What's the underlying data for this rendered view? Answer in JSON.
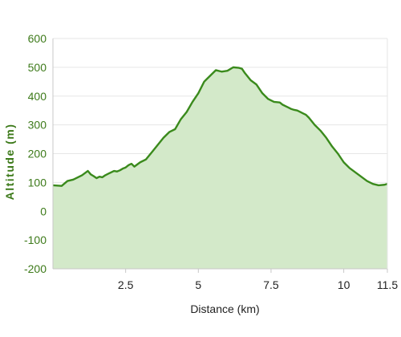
{
  "chart_data": {
    "type": "area",
    "xlabel": "Distance (km)",
    "ylabel": "Altitude (m)",
    "xlim": [
      0,
      11.5
    ],
    "ylim": [
      -200,
      600
    ],
    "x_ticks": [
      {
        "value": 2.5,
        "label": "2.5"
      },
      {
        "value": 5,
        "label": "5"
      },
      {
        "value": 7.5,
        "label": "7.5"
      },
      {
        "value": 10,
        "label": "10"
      },
      {
        "value": 11.5,
        "label": "11.5"
      }
    ],
    "y_ticks": [
      {
        "value": -200,
        "label": "-200"
      },
      {
        "value": -100,
        "label": "-100"
      },
      {
        "value": 0,
        "label": "0"
      },
      {
        "value": 100,
        "label": "100"
      },
      {
        "value": 200,
        "label": "200"
      },
      {
        "value": 300,
        "label": "300"
      },
      {
        "value": 400,
        "label": "400"
      },
      {
        "value": 500,
        "label": "500"
      },
      {
        "value": 600,
        "label": "600"
      }
    ],
    "grid": "horizontal",
    "line_color": "#3a8a1c",
    "fill_color": "#d3e9c9",
    "axis_label_color": "#3d7a1a",
    "series": [
      {
        "x": [
          0,
          0.3,
          0.5,
          0.7,
          1.0,
          1.2,
          1.3,
          1.4,
          1.5,
          1.6,
          1.7,
          1.8,
          1.9,
          2.0,
          2.1,
          2.2,
          2.3,
          2.4,
          2.5,
          2.6,
          2.7,
          2.8,
          3.0,
          3.2,
          3.4,
          3.6,
          3.8,
          4.0,
          4.2,
          4.4,
          4.6,
          4.8,
          5.0,
          5.2,
          5.4,
          5.6,
          5.8,
          6.0,
          6.2,
          6.4,
          6.5,
          6.6,
          6.8,
          7.0,
          7.2,
          7.4,
          7.6,
          7.8,
          7.9,
          8.0,
          8.1,
          8.2,
          8.3,
          8.4,
          8.5,
          8.6,
          8.7,
          8.8,
          9.0,
          9.2,
          9.4,
          9.6,
          9.8,
          10.0,
          10.2,
          10.4,
          10.6,
          10.8,
          11.0,
          11.2,
          11.4,
          11.5
        ],
        "y": [
          90,
          88,
          105,
          110,
          125,
          140,
          128,
          122,
          115,
          120,
          118,
          125,
          130,
          135,
          140,
          138,
          142,
          148,
          152,
          160,
          165,
          155,
          170,
          180,
          205,
          230,
          255,
          275,
          285,
          320,
          345,
          380,
          410,
          450,
          470,
          490,
          485,
          488,
          500,
          498,
          495,
          480,
          455,
          440,
          410,
          390,
          380,
          378,
          370,
          365,
          360,
          355,
          352,
          350,
          345,
          340,
          335,
          325,
          300,
          280,
          255,
          225,
          200,
          170,
          150,
          135,
          120,
          105,
          95,
          90,
          92,
          95
        ]
      }
    ]
  }
}
